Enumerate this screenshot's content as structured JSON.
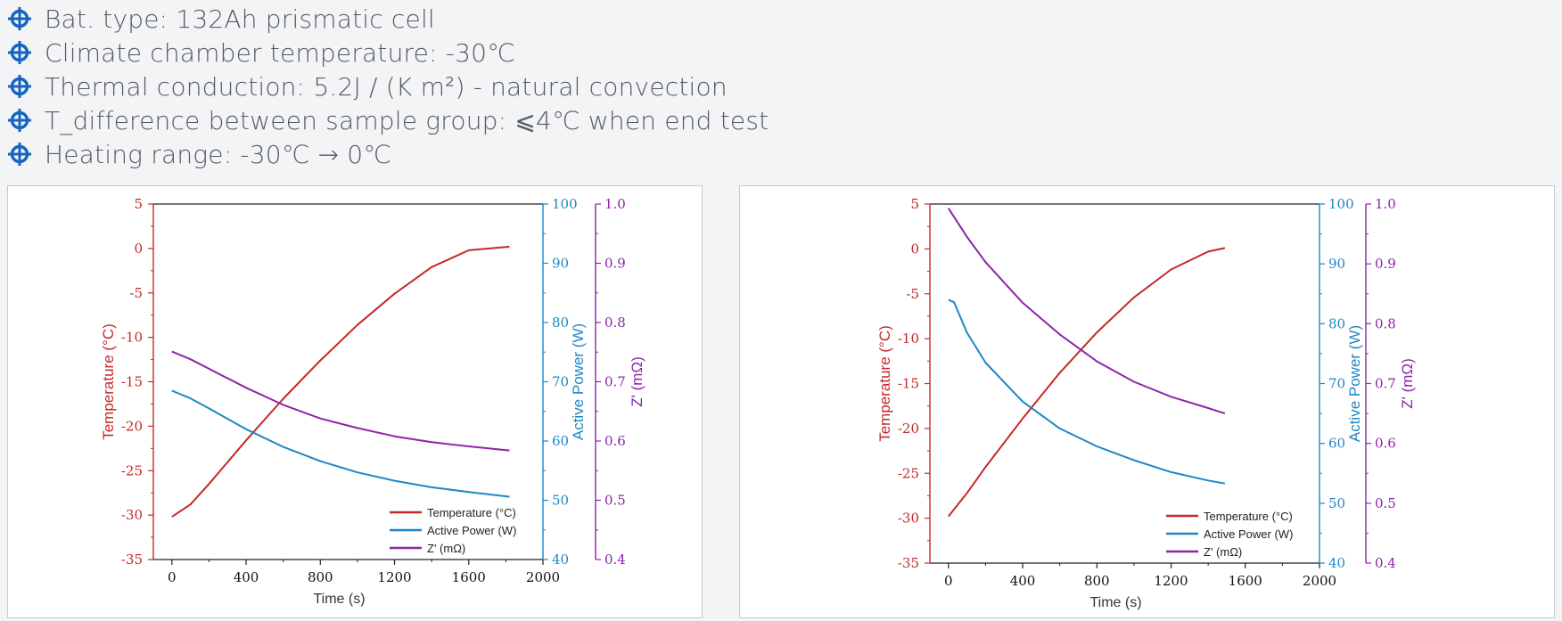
{
  "colors": {
    "bullet_icon": "#1565c0",
    "temperature": "#c62828",
    "power": "#1f86c6",
    "impedance": "#8e24aa",
    "text": "#555a60"
  },
  "bullets": [
    {
      "icon": "crosshair-icon",
      "text": "Bat. type: 132Ah prismatic cell"
    },
    {
      "icon": "crosshair-icon",
      "text": "Climate chamber temperature: -30℃"
    },
    {
      "icon": "crosshair-icon",
      "text": "Thermal conduction: 5.2J / (K m²) - natural convection"
    },
    {
      "icon": "crosshair-icon",
      "text": "T_difference between sample group: ⩽4℃ when end test"
    },
    {
      "icon": "crosshair-icon",
      "text": "Heating range: -30℃ → 0℃"
    }
  ],
  "chart_data": [
    {
      "type": "line",
      "xlabel": "Time (s)",
      "xlim": [
        -100,
        2000
      ],
      "xticks": [
        0,
        400,
        800,
        1200,
        1600,
        2000
      ],
      "axes": {
        "temp": {
          "label": "Temperature (°C)",
          "lim": [
            -35,
            5
          ],
          "ticks": [
            5,
            0,
            -5,
            -10,
            -15,
            -20,
            -25,
            -30,
            -35
          ]
        },
        "power": {
          "label": "Active Power (W)",
          "lim": [
            40,
            100
          ],
          "ticks": [
            100,
            90,
            80,
            70,
            60,
            50,
            40
          ]
        },
        "imp": {
          "label": "Z' (mΩ)",
          "lim": [
            0.4,
            1.0
          ],
          "ticks": [
            "1.0",
            "0.9",
            "0.8",
            "0.7",
            "0.6",
            "0.5",
            "0.4"
          ]
        }
      },
      "legend_position": "bottom-right",
      "series": [
        {
          "name": "Temperature (°C)",
          "axis": "temp",
          "x": [
            0,
            100,
            200,
            400,
            600,
            800,
            1000,
            1200,
            1400,
            1600,
            1820
          ],
          "y": [
            -30.2,
            -28.8,
            -26.5,
            -21.6,
            -16.9,
            -12.6,
            -8.6,
            -5.1,
            -2.1,
            -0.2,
            0.2
          ]
        },
        {
          "name": "Active Power (W)",
          "axis": "power",
          "x": [
            0,
            100,
            200,
            400,
            600,
            800,
            1000,
            1200,
            1400,
            1600,
            1820
          ],
          "y": [
            68.5,
            67.2,
            65.5,
            62.0,
            59.0,
            56.6,
            54.7,
            53.3,
            52.2,
            51.4,
            50.6
          ]
        },
        {
          "name": "Z' (mΩ)",
          "axis": "imp",
          "x": [
            0,
            100,
            200,
            400,
            600,
            800,
            1000,
            1200,
            1400,
            1600,
            1820
          ],
          "y": [
            0.751,
            0.738,
            0.722,
            0.69,
            0.661,
            0.638,
            0.622,
            0.608,
            0.598,
            0.591,
            0.584
          ]
        }
      ]
    },
    {
      "type": "line",
      "xlabel": "Time (s)",
      "xlim": [
        -100,
        2000
      ],
      "xticks": [
        0,
        400,
        800,
        1200,
        1600,
        2000
      ],
      "axes": {
        "temp": {
          "label": "Temperature (°C)",
          "lim": [
            -35,
            5
          ],
          "ticks": [
            5,
            0,
            -5,
            -10,
            -15,
            -20,
            -25,
            -30,
            -35
          ]
        },
        "power": {
          "label": "Active Power (W)",
          "lim": [
            40,
            100
          ],
          "ticks": [
            100,
            90,
            80,
            70,
            60,
            50,
            40
          ]
        },
        "imp": {
          "label": "Z' (mΩ)",
          "lim": [
            0.4,
            1.0
          ],
          "ticks": [
            "1.0",
            "0.9",
            "0.8",
            "0.7",
            "0.6",
            "0.5",
            "0.4"
          ]
        }
      },
      "legend_position": "bottom-right",
      "series": [
        {
          "name": "Temperature (°C)",
          "axis": "temp",
          "x": [
            0,
            100,
            200,
            400,
            600,
            800,
            1000,
            1200,
            1400,
            1490
          ],
          "y": [
            -29.8,
            -27.2,
            -24.3,
            -18.9,
            -13.8,
            -9.3,
            -5.4,
            -2.3,
            -0.3,
            0.1
          ]
        },
        {
          "name": "Active Power (W)",
          "axis": "power",
          "x": [
            0,
            30,
            100,
            200,
            400,
            600,
            800,
            1000,
            1200,
            1400,
            1490
          ],
          "y": [
            84.0,
            83.6,
            78.5,
            73.5,
            67.0,
            62.5,
            59.5,
            57.2,
            55.2,
            53.8,
            53.3
          ]
        },
        {
          "name": "Z' (mΩ)",
          "axis": "imp",
          "x": [
            0,
            100,
            200,
            400,
            600,
            800,
            1000,
            1200,
            1400,
            1490
          ],
          "y": [
            0.993,
            0.945,
            0.903,
            0.835,
            0.782,
            0.737,
            0.703,
            0.678,
            0.659,
            0.65
          ]
        }
      ]
    }
  ]
}
